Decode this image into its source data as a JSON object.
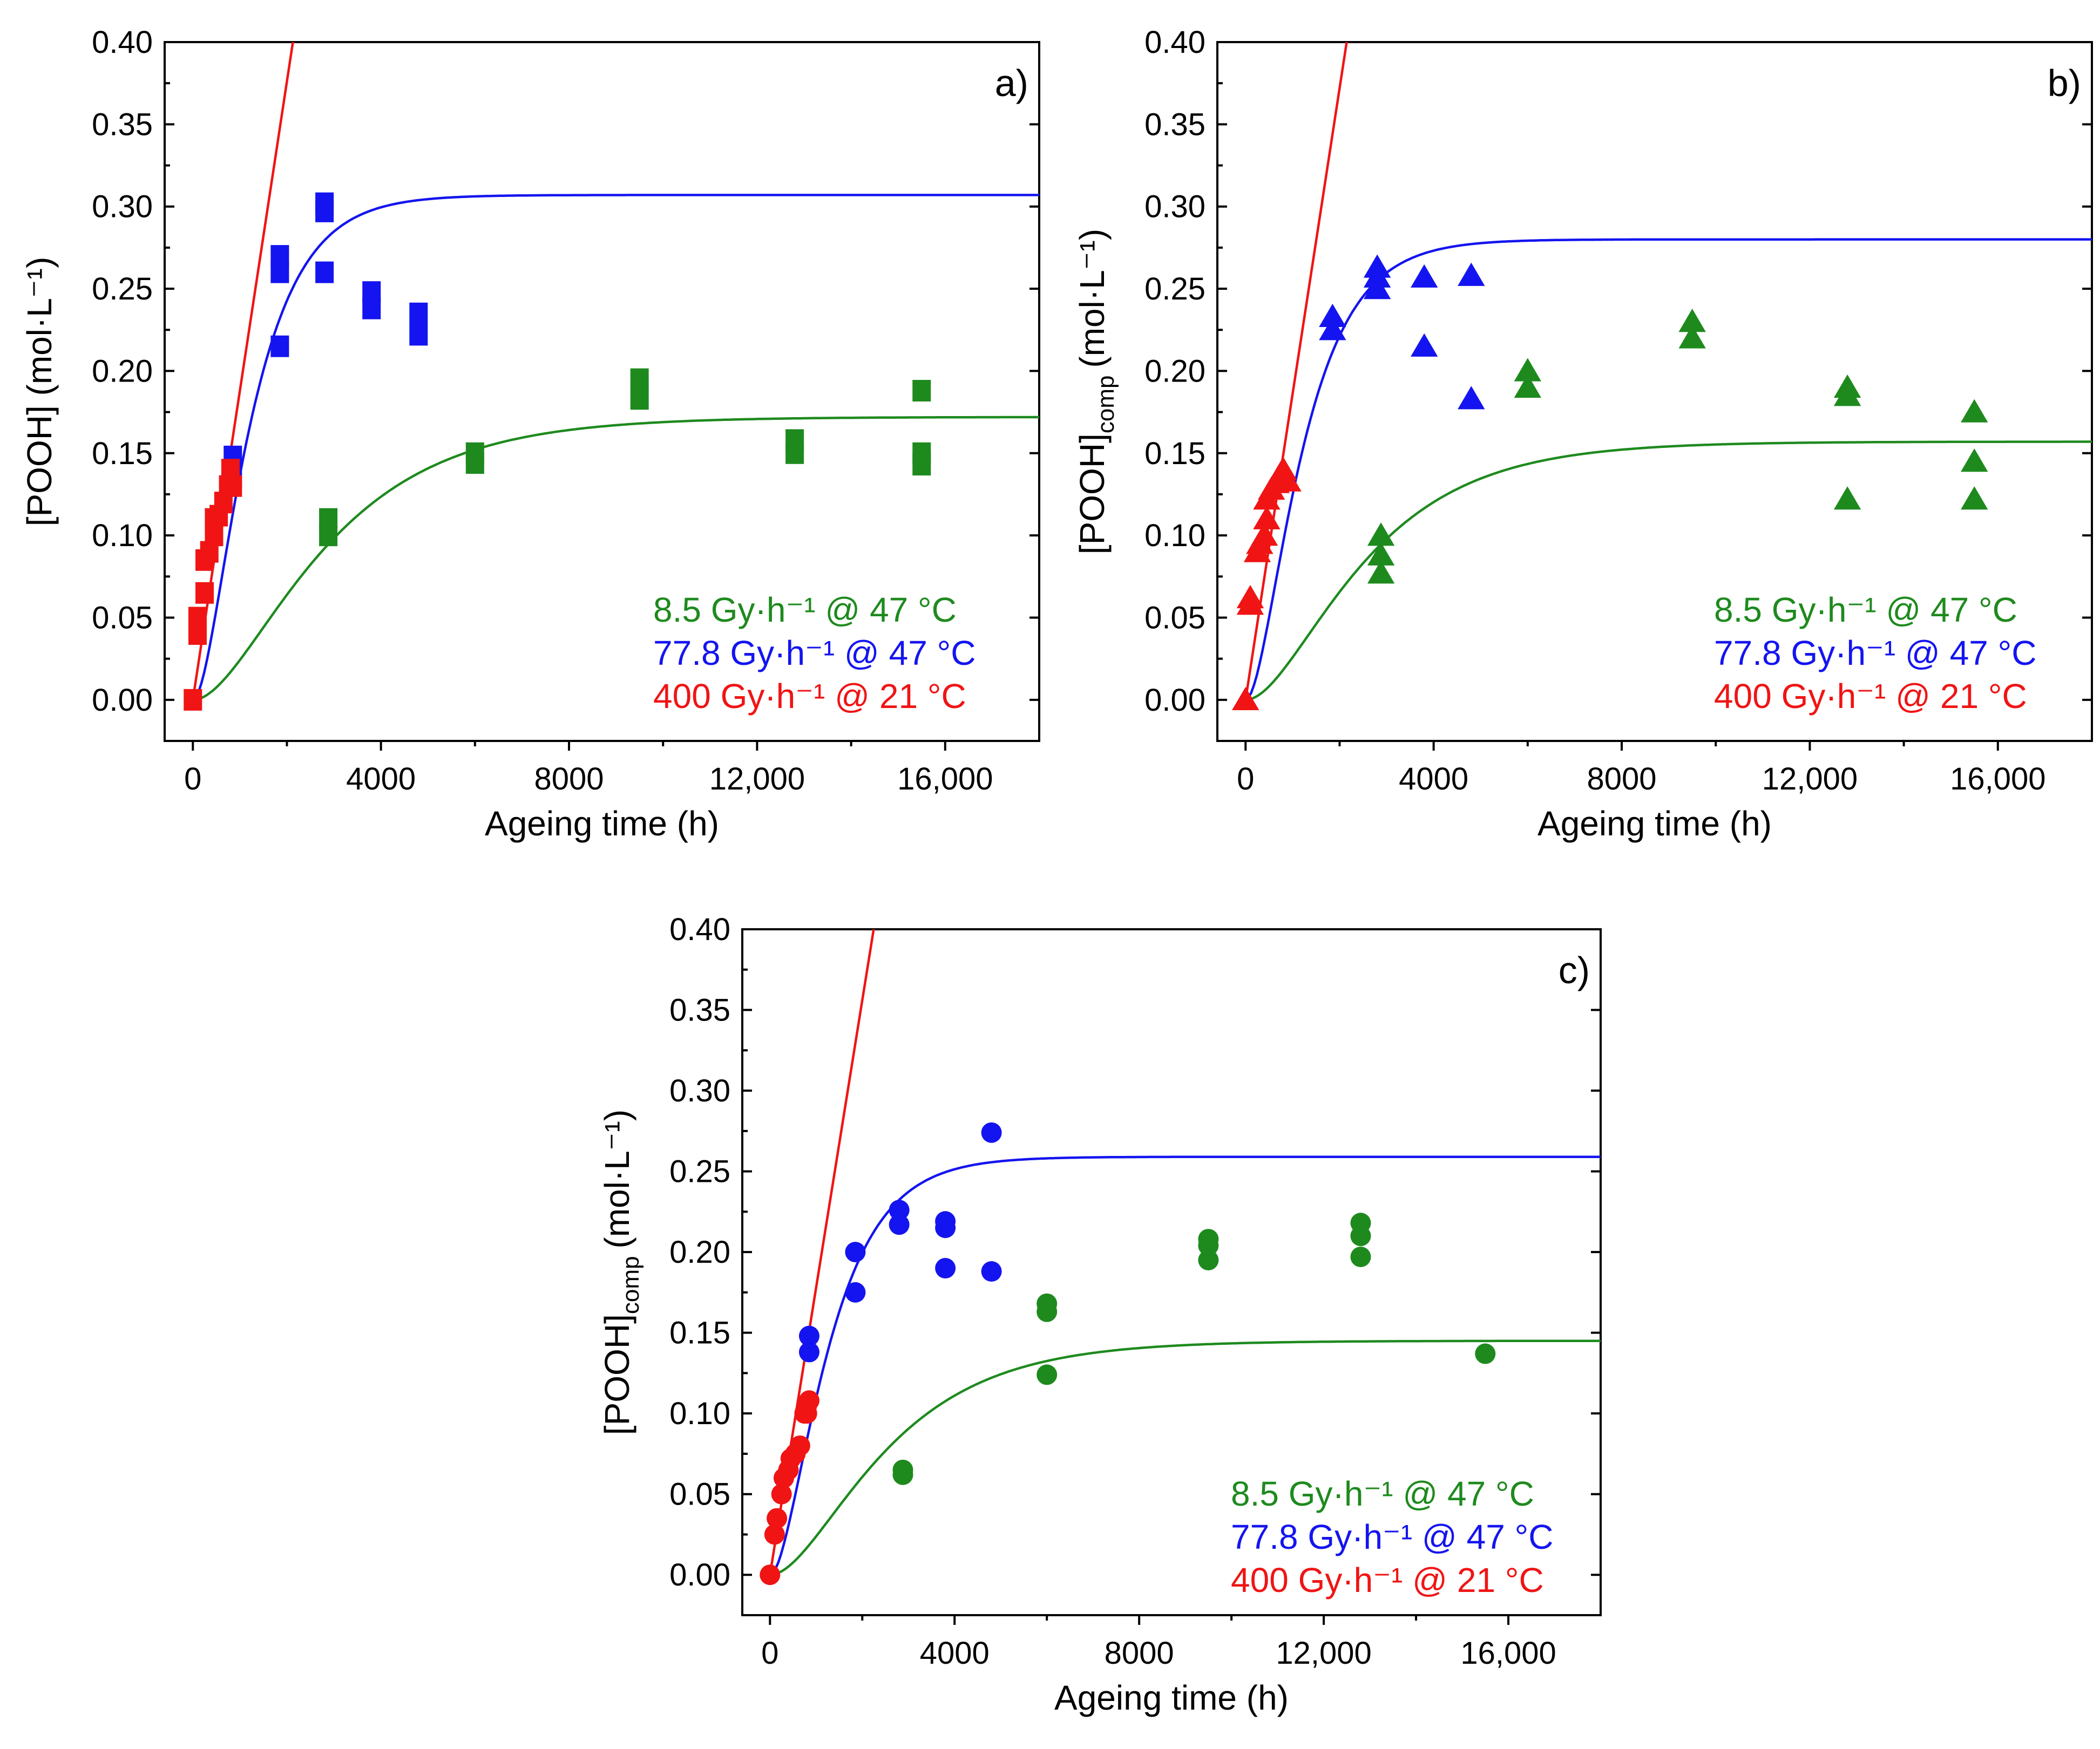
{
  "colors": {
    "green": "#1e8a1e",
    "blue": "#1414f0",
    "red": "#f01414"
  },
  "legend": [
    {
      "key": "green",
      "text": "8.5 Gy·h⁻¹ @ 47 °C",
      "color": "#1e8a1e"
    },
    {
      "key": "blue",
      "text": "77.8 Gy·h⁻¹ @ 47 °C",
      "color": "#1414f0"
    },
    {
      "key": "red",
      "text": "400 Gy·h⁻¹ @ 21 °C",
      "color": "#f01414"
    }
  ],
  "chart_data": [
    {
      "id": "a",
      "type": "scatter",
      "panel_label": "a)",
      "marker": "square",
      "xlabel": "Ageing time (h)",
      "ylabel": "[POOH] (mol·L⁻¹)",
      "xlim": [
        -600,
        18000
      ],
      "ylim": [
        -0.025,
        0.4
      ],
      "xticks": [
        0,
        4000,
        8000,
        12000,
        16000
      ],
      "xtick_labels": [
        "0",
        "4000",
        "8000",
        "12,000",
        "16,000"
      ],
      "yticks": [
        0,
        0.05,
        0.1,
        0.15,
        0.2,
        0.25,
        0.3,
        0.35,
        0.4
      ],
      "ytick_labels": [
        "0.00",
        "0.05",
        "0.10",
        "0.15",
        "0.20",
        "0.25",
        "0.30",
        "0.35",
        "0.40"
      ],
      "series": [
        {
          "name": "8.5 Gy·h⁻¹ @ 47 °C",
          "color": "green",
          "points": [
            [
              2880,
              0.11
            ],
            [
              2880,
              0.1
            ],
            [
              6000,
              0.15
            ],
            [
              6000,
              0.144
            ],
            [
              9500,
              0.195
            ],
            [
              9500,
              0.183
            ],
            [
              12800,
              0.158
            ],
            [
              12800,
              0.15
            ],
            [
              15500,
              0.188
            ],
            [
              15500,
              0.15
            ],
            [
              15500,
              0.143
            ]
          ],
          "fit": {
            "plateau": 0.172,
            "k": 0.00047
          }
        },
        {
          "name": "77.8 Gy·h⁻¹ @ 47 °C",
          "color": "blue",
          "points": [
            [
              1850,
              0.27
            ],
            [
              1850,
              0.26
            ],
            [
              1850,
              0.215
            ],
            [
              2800,
              0.302
            ],
            [
              2800,
              0.297
            ],
            [
              2800,
              0.26
            ],
            [
              3800,
              0.248
            ],
            [
              3800,
              0.238
            ],
            [
              4800,
              0.235
            ],
            [
              4800,
              0.222
            ],
            [
              850,
              0.148
            ],
            [
              850,
              0.135
            ]
          ],
          "fit": {
            "plateau": 0.307,
            "k": 0.0011
          }
        },
        {
          "name": "400 Gy·h⁻¹ @ 21 °C",
          "color": "red",
          "points": [
            [
              0,
              0
            ],
            [
              100,
              0.04
            ],
            [
              100,
              0.05
            ],
            [
              250,
              0.065
            ],
            [
              250,
              0.085
            ],
            [
              350,
              0.09
            ],
            [
              450,
              0.1
            ],
            [
              450,
              0.11
            ],
            [
              550,
              0.112
            ],
            [
              650,
              0.12
            ],
            [
              750,
              0.13
            ],
            [
              800,
              0.14
            ],
            [
              850,
              0.13
            ]
          ],
          "fit": {
            "slope": 0.000188
          }
        }
      ]
    },
    {
      "id": "b",
      "type": "scatter",
      "panel_label": "b)",
      "marker": "triangle",
      "xlabel": "Ageing time (h)",
      "ylabel": "[POOH]",
      "ylabel_sub": "comp",
      "ylabel_unit": "(mol·L⁻¹)",
      "xlim": [
        -600,
        18000
      ],
      "ylim": [
        -0.025,
        0.4
      ],
      "xticks": [
        0,
        4000,
        8000,
        12000,
        16000
      ],
      "xtick_labels": [
        "0",
        "4000",
        "8000",
        "12,000",
        "16,000"
      ],
      "yticks": [
        0,
        0.05,
        0.1,
        0.15,
        0.2,
        0.25,
        0.3,
        0.35,
        0.4
      ],
      "ytick_labels": [
        "0.00",
        "0.05",
        "0.10",
        "0.15",
        "0.20",
        "0.25",
        "0.30",
        "0.35",
        "0.40"
      ],
      "series": [
        {
          "name": "8.5 Gy·h⁻¹ @ 47 °C",
          "color": "green",
          "points": [
            [
              2880,
              0.1
            ],
            [
              2880,
              0.088
            ],
            [
              2880,
              0.077
            ],
            [
              6000,
              0.2
            ],
            [
              6000,
              0.19
            ],
            [
              9500,
              0.23
            ],
            [
              9500,
              0.22
            ],
            [
              12800,
              0.19
            ],
            [
              12800,
              0.185
            ],
            [
              12800,
              0.122
            ],
            [
              15500,
              0.175
            ],
            [
              15500,
              0.145
            ],
            [
              15500,
              0.122
            ]
          ],
          "fit": {
            "plateau": 0.157,
            "k": 0.00052
          }
        },
        {
          "name": "77.8 Gy·h⁻¹ @ 47 °C",
          "color": "blue",
          "points": [
            [
              1850,
              0.233
            ],
            [
              1850,
              0.225
            ],
            [
              2800,
              0.263
            ],
            [
              2800,
              0.257
            ],
            [
              2800,
              0.25
            ],
            [
              3800,
              0.257
            ],
            [
              3800,
              0.215
            ],
            [
              4800,
              0.258
            ],
            [
              4800,
              0.183
            ]
          ],
          "fit": {
            "plateau": 0.28,
            "k": 0.0011
          }
        },
        {
          "name": "400 Gy·h⁻¹ @ 21 °C",
          "color": "red",
          "points": [
            [
              0,
              0
            ],
            [
              100,
              0.062
            ],
            [
              100,
              0.058
            ],
            [
              250,
              0.09
            ],
            [
              300,
              0.095
            ],
            [
              400,
              0.1
            ],
            [
              450,
              0.11
            ],
            [
              450,
              0.122
            ],
            [
              550,
              0.128
            ],
            [
              650,
              0.132
            ],
            [
              750,
              0.135
            ],
            [
              800,
              0.14
            ],
            [
              900,
              0.133
            ]
          ],
          "fit": {
            "slope": 0.000186
          }
        }
      ]
    },
    {
      "id": "c",
      "type": "scatter",
      "panel_label": "c)",
      "marker": "circle",
      "xlabel": "Ageing time (h)",
      "ylabel": "[POOH]",
      "ylabel_sub": "comp",
      "ylabel_unit": "(mol·L⁻¹)",
      "xlim": [
        -600,
        18000
      ],
      "ylim": [
        -0.025,
        0.4
      ],
      "xticks": [
        0,
        4000,
        8000,
        12000,
        16000
      ],
      "xtick_labels": [
        "0",
        "4000",
        "8000",
        "12,000",
        "16,000"
      ],
      "yticks": [
        0,
        0.05,
        0.1,
        0.15,
        0.2,
        0.25,
        0.3,
        0.35,
        0.4
      ],
      "ytick_labels": [
        "0.00",
        "0.05",
        "0.10",
        "0.15",
        "0.20",
        "0.25",
        "0.30",
        "0.35",
        "0.40"
      ],
      "series": [
        {
          "name": "8.5 Gy·h⁻¹ @ 47 °C",
          "color": "green",
          "points": [
            [
              2880,
              0.065
            ],
            [
              2880,
              0.062
            ],
            [
              6000,
              0.168
            ],
            [
              6000,
              0.163
            ],
            [
              6000,
              0.124
            ],
            [
              9500,
              0.208
            ],
            [
              9500,
              0.204
            ],
            [
              9500,
              0.195
            ],
            [
              12800,
              0.218
            ],
            [
              12800,
              0.21
            ],
            [
              12800,
              0.197
            ],
            [
              15500,
              0.137
            ]
          ],
          "fit": {
            "plateau": 0.145,
            "k": 0.00052
          }
        },
        {
          "name": "77.8 Gy·h⁻¹ @ 47 °C",
          "color": "blue",
          "points": [
            [
              850,
              0.148
            ],
            [
              850,
              0.138
            ],
            [
              1850,
              0.2
            ],
            [
              1850,
              0.175
            ],
            [
              2800,
              0.226
            ],
            [
              2800,
              0.217
            ],
            [
              3800,
              0.219
            ],
            [
              3800,
              0.215
            ],
            [
              3800,
              0.19
            ],
            [
              4800,
              0.274
            ],
            [
              4800,
              0.188
            ]
          ],
          "fit": {
            "plateau": 0.259,
            "k": 0.00105
          }
        },
        {
          "name": "400 Gy·h⁻¹ @ 21 °C",
          "color": "red",
          "points": [
            [
              0,
              0
            ],
            [
              100,
              0.025
            ],
            [
              150,
              0.035
            ],
            [
              250,
              0.05
            ],
            [
              300,
              0.06
            ],
            [
              400,
              0.065
            ],
            [
              450,
              0.072
            ],
            [
              550,
              0.075
            ],
            [
              650,
              0.08
            ],
            [
              750,
              0.1
            ],
            [
              800,
              0.105
            ],
            [
              850,
              0.108
            ],
            [
              800,
              0.1
            ]
          ],
          "fit": {
            "slope": 0.000178
          }
        }
      ]
    }
  ]
}
